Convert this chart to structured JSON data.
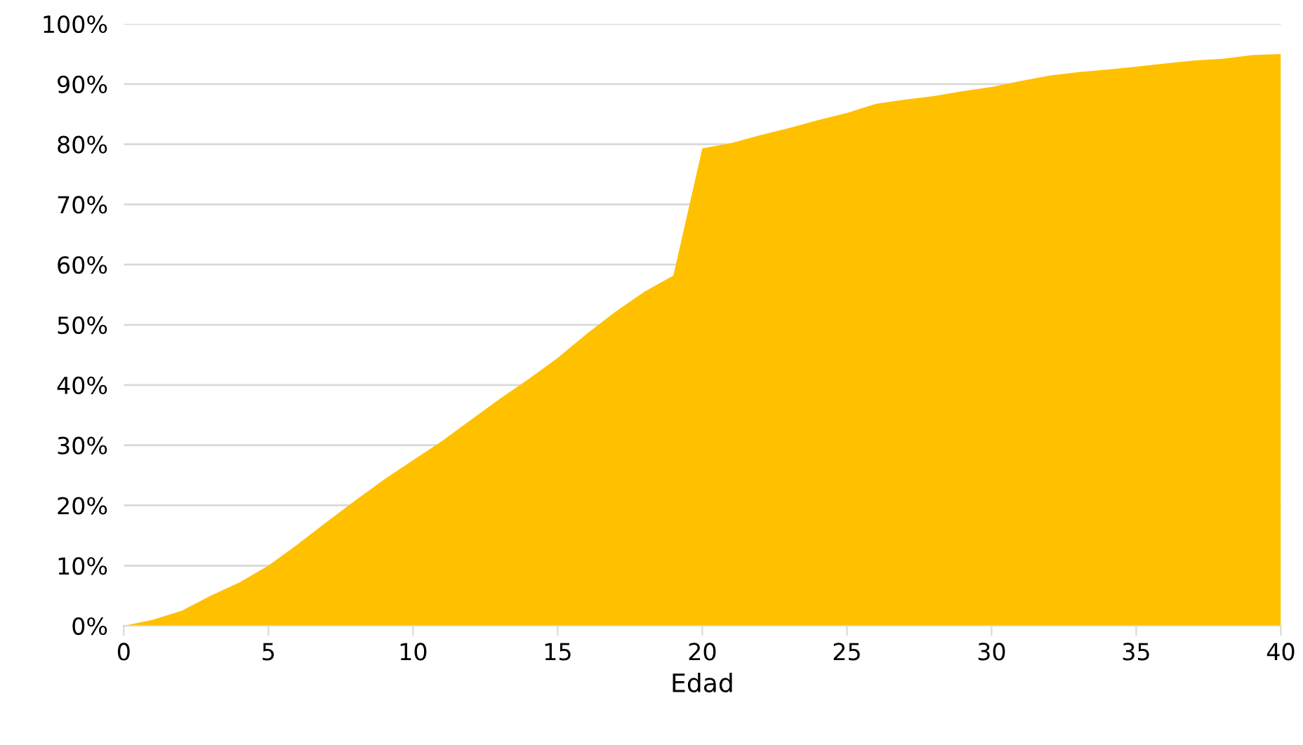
{
  "chart_data": {
    "type": "area",
    "xlabel": "Edad",
    "x": [
      0,
      1,
      2,
      3,
      4,
      5,
      6,
      7,
      8,
      9,
      10,
      11,
      12,
      13,
      14,
      15,
      16,
      17,
      18,
      19,
      20,
      21,
      22,
      23,
      24,
      25,
      26,
      27,
      28,
      29,
      30,
      31,
      32,
      33,
      34,
      35,
      36,
      37,
      38,
      39,
      40
    ],
    "series": [
      {
        "color": "#ffc000",
        "values": [
          0,
          1,
          2.5,
          5,
          7.2,
          10,
          13.5,
          17.2,
          20.8,
          24.3,
          27.5,
          30.7,
          34.2,
          37.7,
          41,
          44.5,
          48.5,
          52.2,
          55.5,
          58.2,
          79.3,
          80.2,
          81.5,
          82.7,
          84,
          85.2,
          86.7,
          87.4,
          88,
          88.8,
          89.5,
          90.5,
          91.4,
          92,
          92.4,
          92.9,
          93.4,
          93.9,
          94.2,
          94.8,
          95
        ]
      }
    ],
    "xlim": [
      0,
      40
    ],
    "xticks": [
      0,
      5,
      10,
      15,
      20,
      25,
      30,
      35,
      40
    ],
    "ylim": [
      0,
      100
    ],
    "yticks": [
      {
        "value": 0,
        "label": "0%"
      },
      {
        "value": 10,
        "label": "10%"
      },
      {
        "value": 20,
        "label": "20%"
      },
      {
        "value": 30,
        "label": "30%"
      },
      {
        "value": 40,
        "label": "40%"
      },
      {
        "value": 50,
        "label": "50%"
      },
      {
        "value": 60,
        "label": "60%"
      },
      {
        "value": 70,
        "label": "70%"
      },
      {
        "value": 80,
        "label": "80%"
      },
      {
        "value": 90,
        "label": "90%"
      },
      {
        "value": 100,
        "label": "100%"
      }
    ],
    "grid": "y"
  }
}
